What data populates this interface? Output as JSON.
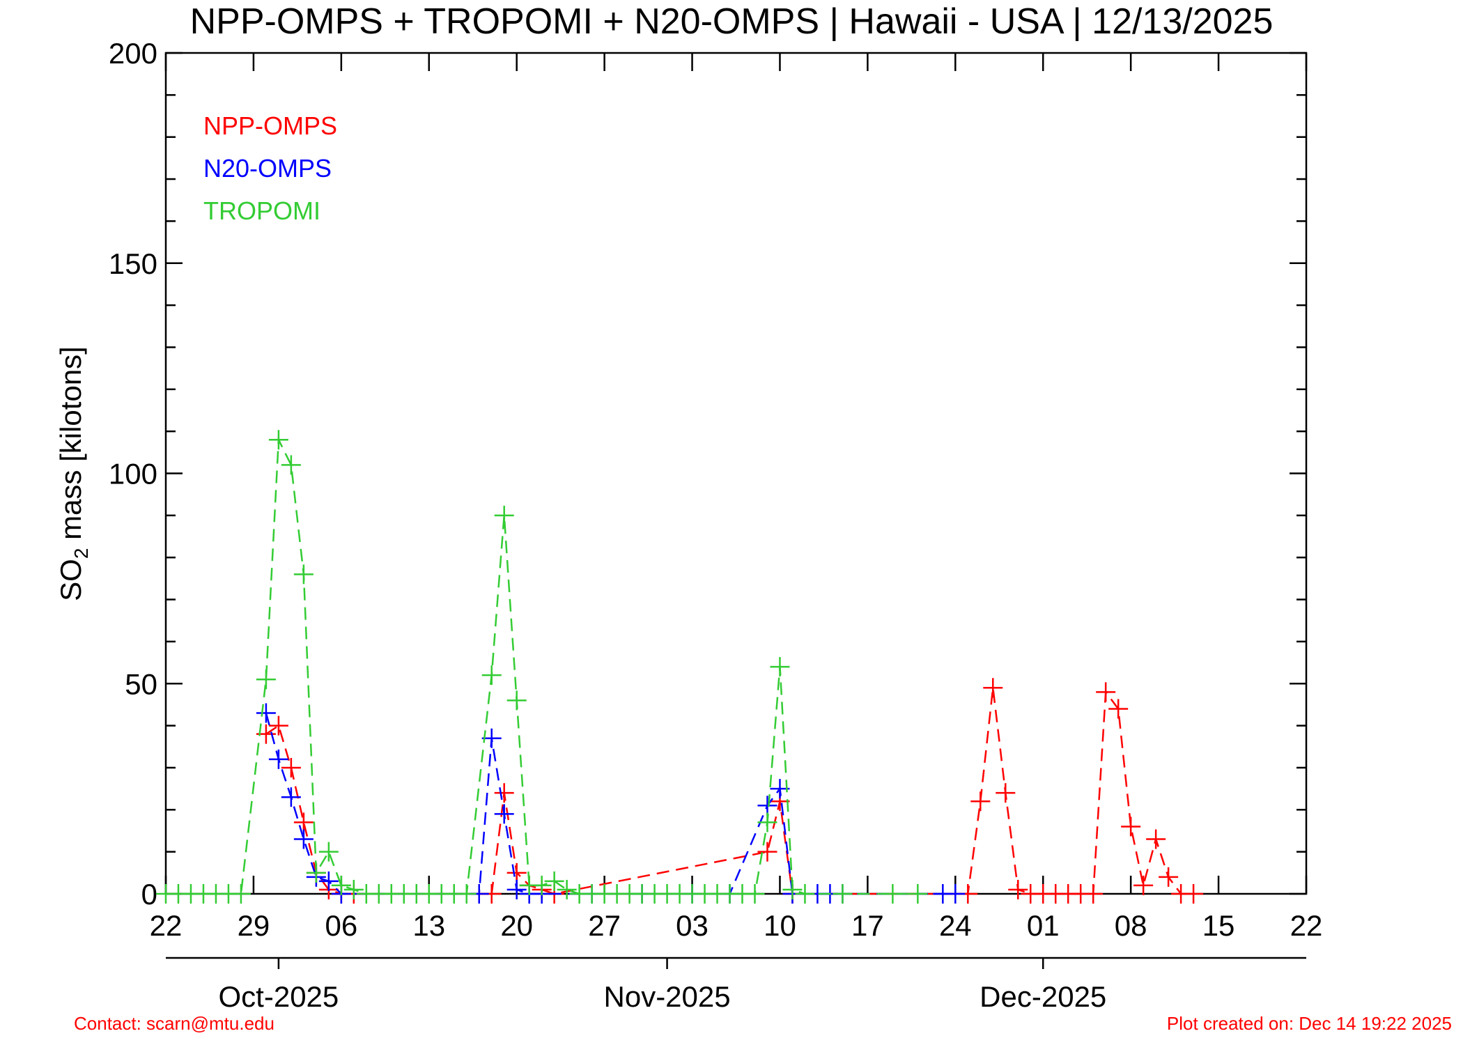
{
  "title": "NPP-OMPS + TROPOMI + N20-OMPS | Hawaii - USA | 12/13/2025",
  "footer": {
    "contact": "Contact: scarn@mtu.edu",
    "created": "Plot created on: Dec 14 19:22 2025"
  },
  "chart_data": {
    "type": "line",
    "title": "NPP-OMPS + TROPOMI + N20-OMPS | Hawaii - USA | 12/13/2025",
    "ylabel": "SO2 mass [kilotons]",
    "ylabel_main": "SO",
    "ylabel_sub": "2",
    "ylabel_rest": " mass [kilotons]",
    "xlabel": "",
    "ylim": [
      0,
      200
    ],
    "xlim": [
      "2025-09-22",
      "2025-12-22"
    ],
    "yticks": [
      0,
      50,
      100,
      150,
      200
    ],
    "xticks": [
      {
        "date": "2025-09-22",
        "label": "22"
      },
      {
        "date": "2025-09-29",
        "label": "29"
      },
      {
        "date": "2025-10-06",
        "label": "06"
      },
      {
        "date": "2025-10-13",
        "label": "13"
      },
      {
        "date": "2025-10-20",
        "label": "20"
      },
      {
        "date": "2025-10-27",
        "label": "27"
      },
      {
        "date": "2025-11-03",
        "label": "03"
      },
      {
        "date": "2025-11-10",
        "label": "10"
      },
      {
        "date": "2025-11-17",
        "label": "17"
      },
      {
        "date": "2025-11-24",
        "label": "24"
      },
      {
        "date": "2025-12-01",
        "label": "01"
      },
      {
        "date": "2025-12-08",
        "label": "08"
      },
      {
        "date": "2025-12-15",
        "label": "15"
      },
      {
        "date": "2025-12-22",
        "label": "22"
      }
    ],
    "months": [
      {
        "date": "2025-10-01",
        "label": "Oct-2025"
      },
      {
        "date": "2025-11-01",
        "label": "Nov-2025"
      },
      {
        "date": "2025-12-01",
        "label": "Dec-2025"
      }
    ],
    "grid": false,
    "legend_position": "top-left",
    "series": [
      {
        "name": "NPP-OMPS",
        "color": "#ff0000",
        "marker": "plus",
        "line": "dashed",
        "points": [
          [
            "2025-10-05",
            0
          ],
          [
            "2025-10-06",
            0
          ],
          [
            "2025-10-07",
            0
          ],
          [
            "2025-09-30",
            38
          ],
          [
            "2025-10-01",
            40
          ],
          [
            "2025-10-02",
            30
          ],
          [
            "2025-10-03",
            17
          ],
          [
            "2025-10-04",
            5
          ],
          [
            "2025-10-05",
            1
          ],
          [
            "2025-10-17",
            0
          ],
          [
            "2025-10-18",
            0
          ],
          [
            "2025-10-19",
            24
          ],
          [
            "2025-10-20",
            5
          ],
          [
            "2025-10-21",
            2
          ],
          [
            "2025-10-22",
            1
          ],
          [
            "2025-10-23",
            0
          ],
          [
            "2025-11-09",
            10
          ],
          [
            "2025-11-10",
            22
          ],
          [
            "2025-11-11",
            0
          ],
          [
            "2025-11-25",
            0
          ],
          [
            "2025-11-26",
            22
          ],
          [
            "2025-11-27",
            49
          ],
          [
            "2025-11-28",
            24
          ],
          [
            "2025-11-29",
            1
          ],
          [
            "2025-11-30",
            0
          ],
          [
            "2025-12-01",
            0
          ],
          [
            "2025-12-02",
            0
          ],
          [
            "2025-12-03",
            0
          ],
          [
            "2025-12-04",
            0
          ],
          [
            "2025-12-05",
            0
          ],
          [
            "2025-12-06",
            48
          ],
          [
            "2025-12-07",
            44
          ],
          [
            "2025-12-08",
            16
          ],
          [
            "2025-12-09",
            2
          ],
          [
            "2025-12-10",
            13
          ],
          [
            "2025-12-11",
            4
          ],
          [
            "2025-12-12",
            0
          ],
          [
            "2025-12-13",
            0
          ]
        ]
      },
      {
        "name": "N20-OMPS",
        "color": "#0000ff",
        "marker": "plus",
        "line": "dashed",
        "points": [
          [
            "2025-09-30",
            43
          ],
          [
            "2025-10-01",
            32
          ],
          [
            "2025-10-02",
            23
          ],
          [
            "2025-10-03",
            13
          ],
          [
            "2025-10-04",
            4
          ],
          [
            "2025-10-05",
            3
          ],
          [
            "2025-10-06",
            0
          ],
          [
            "2025-10-17",
            0
          ],
          [
            "2025-10-18",
            37
          ],
          [
            "2025-10-19",
            19
          ],
          [
            "2025-10-20",
            1
          ],
          [
            "2025-10-21",
            0
          ],
          [
            "2025-10-22",
            0
          ],
          [
            "2025-10-26",
            0
          ],
          [
            "2025-10-30",
            0
          ],
          [
            "2025-11-03",
            0
          ],
          [
            "2025-11-06",
            0
          ],
          [
            "2025-11-09",
            21
          ],
          [
            "2025-11-10",
            25
          ],
          [
            "2025-11-11",
            0
          ],
          [
            "2025-11-13",
            0
          ],
          [
            "2025-11-14",
            0
          ],
          [
            "2025-11-15",
            0
          ],
          [
            "2025-11-23",
            0
          ],
          [
            "2025-11-24",
            0
          ]
        ]
      },
      {
        "name": "TROPOMI",
        "color": "#33cc33",
        "marker": "plus",
        "line": "dashed",
        "points": [
          [
            "2025-09-22",
            0
          ],
          [
            "2025-09-23",
            0
          ],
          [
            "2025-09-24",
            0
          ],
          [
            "2025-09-25",
            0
          ],
          [
            "2025-09-26",
            0
          ],
          [
            "2025-09-27",
            0
          ],
          [
            "2025-09-28",
            0
          ],
          [
            "2025-09-30",
            51
          ],
          [
            "2025-10-01",
            108
          ],
          [
            "2025-10-02",
            102
          ],
          [
            "2025-10-03",
            76
          ],
          [
            "2025-10-04",
            5
          ],
          [
            "2025-10-05",
            10
          ],
          [
            "2025-10-06",
            2
          ],
          [
            "2025-10-07",
            1
          ],
          [
            "2025-10-08",
            0
          ],
          [
            "2025-10-09",
            0
          ],
          [
            "2025-10-10",
            0
          ],
          [
            "2025-10-11",
            0
          ],
          [
            "2025-10-12",
            0
          ],
          [
            "2025-10-13",
            0
          ],
          [
            "2025-10-14",
            0
          ],
          [
            "2025-10-15",
            0
          ],
          [
            "2025-10-16",
            0
          ],
          [
            "2025-10-18",
            52
          ],
          [
            "2025-10-19",
            90
          ],
          [
            "2025-10-20",
            46
          ],
          [
            "2025-10-21",
            2
          ],
          [
            "2025-10-22",
            2
          ],
          [
            "2025-10-23",
            3
          ],
          [
            "2025-10-24",
            1
          ],
          [
            "2025-10-25",
            0
          ],
          [
            "2025-10-26",
            0
          ],
          [
            "2025-10-27",
            0
          ],
          [
            "2025-10-28",
            0
          ],
          [
            "2025-10-29",
            0
          ],
          [
            "2025-10-30",
            0
          ],
          [
            "2025-10-31",
            0
          ],
          [
            "2025-11-01",
            0
          ],
          [
            "2025-11-02",
            0
          ],
          [
            "2025-11-03",
            0
          ],
          [
            "2025-11-04",
            0
          ],
          [
            "2025-11-05",
            0
          ],
          [
            "2025-11-06",
            0
          ],
          [
            "2025-11-07",
            0
          ],
          [
            "2025-11-08",
            0
          ],
          [
            "2025-11-09",
            17
          ],
          [
            "2025-11-10",
            54
          ],
          [
            "2025-11-11",
            1
          ],
          [
            "2025-11-12",
            0
          ],
          [
            "2025-11-15",
            0
          ],
          [
            "2025-11-19",
            0
          ],
          [
            "2025-11-21",
            0
          ]
        ]
      }
    ]
  }
}
